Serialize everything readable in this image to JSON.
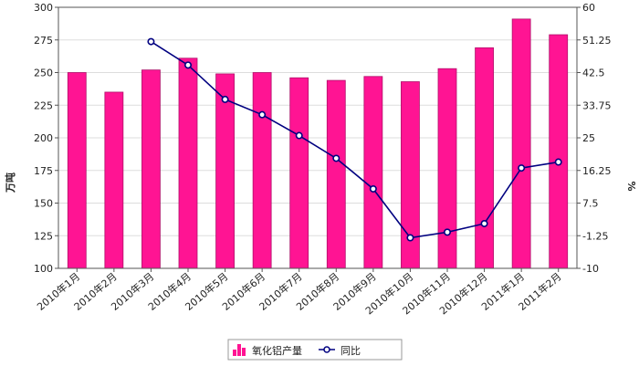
{
  "chart_data": {
    "type": "bar",
    "categories": [
      "2010年1月",
      "2010年2月",
      "2010年3月",
      "2010年4月",
      "2010年5月",
      "2010年6月",
      "2010年7月",
      "2010年8月",
      "2010年9月",
      "2010年10月",
      "2010年11月",
      "2010年12月",
      "2011年1月",
      "2011年2月"
    ],
    "series": [
      {
        "name": "氧化铝产量",
        "type": "bar",
        "axis": "left",
        "color": "#ff1493",
        "values": [
          250,
          235,
          252,
          261,
          249,
          250,
          246,
          244,
          247,
          243,
          253,
          269,
          291,
          279
        ]
      },
      {
        "name": "同比",
        "type": "line",
        "axis": "right",
        "color": "#000080",
        "values": [
          null,
          null,
          50.8,
          44.5,
          35.3,
          31.2,
          25.6,
          19.5,
          11.3,
          -1.8,
          -0.3,
          2.0,
          16.9,
          18.5
        ]
      }
    ],
    "ylabel_left": "万吨",
    "ylabel_right": "%",
    "ylim_left": [
      100,
      300
    ],
    "yticks_left": [
      "100",
      "125",
      "150",
      "175",
      "200",
      "225",
      "250",
      "275",
      "300"
    ],
    "ylim_right": [
      -10,
      60
    ],
    "yticks_right": [
      "-10",
      "-1.25",
      "7.5",
      "16.25",
      "25",
      "33.75",
      "42.5",
      "51.25",
      "60"
    ],
    "grid": "horizontal",
    "legend_position": "bottom-center"
  }
}
